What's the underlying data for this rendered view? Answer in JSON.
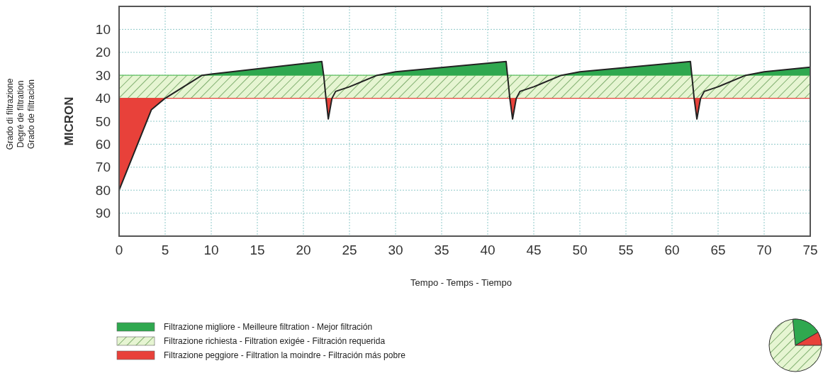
{
  "chart_data": {
    "type": "line",
    "xlabel": "Tempo - Temps - Tiempo",
    "ylabel": "MICRON",
    "annotations": [
      "Grado di filtrazione",
      "Degré de filtration",
      "Grado de filtración"
    ],
    "xlim": [
      0,
      75
    ],
    "xticks": [
      0,
      5,
      10,
      15,
      20,
      25,
      30,
      35,
      40,
      45,
      50,
      55,
      60,
      65,
      70,
      75
    ],
    "ylim": [
      100,
      0
    ],
    "yticks": [
      10,
      20,
      30,
      40,
      50,
      60,
      70,
      80,
      90
    ],
    "grid": true,
    "legend": "bottom left",
    "marker": "none",
    "line_style": "solid",
    "x": [
      0,
      3.5,
      5,
      7,
      9,
      10,
      22,
      22.2,
      22.45,
      22.7,
      23.1,
      23.5,
      25,
      28,
      30,
      42,
      42.15,
      42.4,
      42.7,
      43.1,
      43.5,
      45,
      48,
      50,
      62,
      62.15,
      62.4,
      62.7,
      63.1,
      63.5,
      65,
      68,
      70,
      75
    ],
    "bands": [
      {
        "axis": "y",
        "from": 30,
        "to": 40,
        "label": "Filtrazione richiesta - Filtration exigée - Filtración requerida",
        "color": "#e6f5d2"
      }
    ],
    "ref_lines": [
      {
        "axis": "y",
        "value": 30,
        "color": "#5cbf5c"
      },
      {
        "axis": "y",
        "value": 40,
        "color": "#e8413a"
      }
    ],
    "series": [
      {
        "color": "#222222",
        "values": [
          80,
          45,
          40,
          35,
          30,
          29.5,
          24,
          30,
          40,
          49,
          40,
          37,
          35,
          30,
          28.5,
          24,
          30,
          40,
          49,
          40,
          37,
          35,
          30,
          28.5,
          24,
          30,
          40,
          49,
          40,
          37,
          35,
          30,
          28.5,
          26.5
        ]
      },
      {
        "type": "area",
        "name": "Filtrazione migliore - Meilleure filtration - Mejor filtración",
        "color": "#2fa84f",
        "values": [
          null,
          null,
          null,
          null,
          30,
          29.5,
          24,
          30,
          null,
          null,
          null,
          null,
          null,
          30,
          28.5,
          24,
          30,
          null,
          null,
          null,
          null,
          null,
          30,
          28.5,
          24,
          30,
          null,
          null,
          null,
          null,
          null,
          30,
          28.5,
          26.5
        ]
      },
      {
        "type": "area",
        "name": "Filtrazione peggiore - Filtration la moindre - Filtración más pobre",
        "color": "#e8413a",
        "values": [
          80,
          45,
          40,
          null,
          null,
          null,
          null,
          null,
          40,
          49,
          40,
          null,
          null,
          null,
          null,
          null,
          null,
          40,
          49,
          40,
          null,
          null,
          null,
          null,
          null,
          null,
          40,
          49,
          40,
          null,
          null,
          null,
          null,
          null
        ]
      }
    ]
  }
}
